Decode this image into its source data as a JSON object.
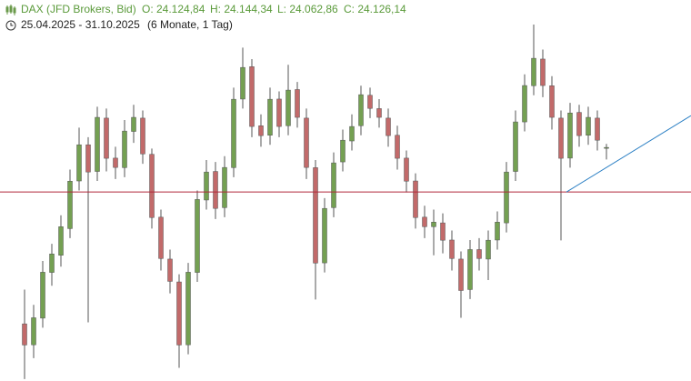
{
  "chart_data": {
    "type": "candlestick",
    "header": {
      "symbol": "DAX (JFD Brokers, Bid)",
      "open": "O: 24.124,84",
      "high": "H: 24.144,34",
      "low": "L: 24.062,86",
      "close": "C: 24.126,14",
      "range": "25.04.2025 - 31.10.2025",
      "period": "(6 Monate, 1 Tag)"
    },
    "up_color": "#74a052",
    "down_color": "#c26a6a",
    "ylim": [
      22900,
      24900
    ],
    "ohlc": [
      [
        23200,
        23380,
        22910,
        23089
      ],
      [
        23090,
        23300,
        23020,
        23232
      ],
      [
        23230,
        23530,
        23180,
        23471
      ],
      [
        23470,
        23620,
        23400,
        23567
      ],
      [
        23560,
        23770,
        23500,
        23710
      ],
      [
        23700,
        24010,
        23650,
        23949
      ],
      [
        23950,
        24230,
        23900,
        24140
      ],
      [
        24140,
        24180,
        23208,
        23997
      ],
      [
        24000,
        24340,
        23950,
        24284
      ],
      [
        24280,
        24330,
        24000,
        24069
      ],
      [
        24070,
        24130,
        23960,
        24021
      ],
      [
        24020,
        24270,
        23970,
        24212
      ],
      [
        24210,
        24350,
        24150,
        24284
      ],
      [
        24280,
        24320,
        24040,
        24092
      ],
      [
        24090,
        24120,
        23700,
        23758
      ],
      [
        23760,
        23800,
        23480,
        23543
      ],
      [
        23540,
        23590,
        23360,
        23423
      ],
      [
        23420,
        23460,
        22969,
        23089
      ],
      [
        23090,
        23520,
        23040,
        23471
      ],
      [
        23470,
        23900,
        23420,
        23853
      ],
      [
        23850,
        24060,
        23800,
        23997
      ],
      [
        24000,
        24050,
        23750,
        23806
      ],
      [
        23810,
        24080,
        23760,
        24021
      ],
      [
        24020,
        24440,
        23970,
        24379
      ],
      [
        24380,
        24650,
        24330,
        24546
      ],
      [
        24550,
        24590,
        24180,
        24236
      ],
      [
        24240,
        24300,
        24130,
        24188
      ],
      [
        24190,
        24440,
        24140,
        24379
      ],
      [
        24380,
        24420,
        24180,
        24236
      ],
      [
        24240,
        24560,
        24190,
        24427
      ],
      [
        24430,
        24470,
        24230,
        24284
      ],
      [
        24280,
        24330,
        23960,
        24021
      ],
      [
        24020,
        24060,
        23328,
        23519
      ],
      [
        23520,
        23860,
        23470,
        23806
      ],
      [
        23810,
        24100,
        23760,
        24045
      ],
      [
        24050,
        24220,
        24000,
        24164
      ],
      [
        24160,
        24300,
        24110,
        24236
      ],
      [
        24240,
        24450,
        24190,
        24403
      ],
      [
        24400,
        24440,
        24280,
        24331
      ],
      [
        24330,
        24380,
        24230,
        24284
      ],
      [
        24280,
        24330,
        24130,
        24188
      ],
      [
        24190,
        24240,
        24010,
        24069
      ],
      [
        24070,
        24110,
        23890,
        23949
      ],
      [
        23950,
        23990,
        23700,
        23758
      ],
      [
        23760,
        23820,
        23650,
        23710
      ],
      [
        23710,
        23800,
        23560,
        23734
      ],
      [
        23730,
        23780,
        23570,
        23639
      ],
      [
        23640,
        23690,
        23480,
        23543
      ],
      [
        23540,
        23580,
        23232,
        23375
      ],
      [
        23380,
        23640,
        23330,
        23590
      ],
      [
        23590,
        23650,
        23480,
        23543
      ],
      [
        23540,
        23690,
        23430,
        23639
      ],
      [
        23640,
        23790,
        23590,
        23734
      ],
      [
        23730,
        24050,
        23680,
        23997
      ],
      [
        24000,
        24320,
        23950,
        24260
      ],
      [
        24260,
        24510,
        24210,
        24451
      ],
      [
        24450,
        24771,
        24400,
        24594
      ],
      [
        24590,
        24640,
        24390,
        24451
      ],
      [
        24450,
        24500,
        24220,
        24284
      ],
      [
        24280,
        24320,
        23638,
        24069
      ],
      [
        24070,
        24360,
        24020,
        24307
      ],
      [
        24310,
        24350,
        24130,
        24188
      ],
      [
        24190,
        24340,
        24140,
        24284
      ],
      [
        24280,
        24320,
        24110,
        24164
      ],
      [
        24124.84,
        24144.34,
        24062.86,
        24126.14
      ]
    ],
    "hline": {
      "value": 23892,
      "color": "#b0283a"
    },
    "trendline": {
      "x": [
        59.6,
        73.3
      ],
      "values": [
        23892,
        24293
      ],
      "color": "#2a7fc4"
    }
  }
}
